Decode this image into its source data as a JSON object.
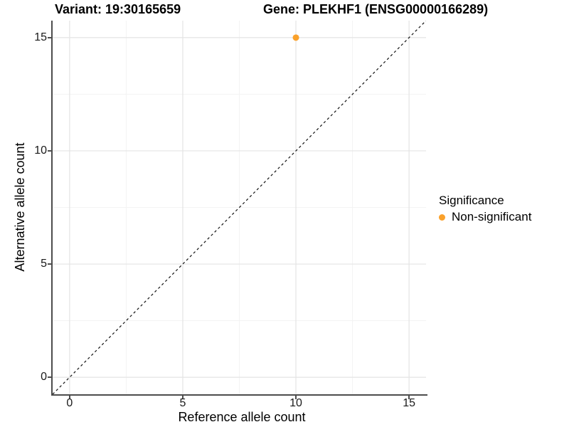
{
  "title": {
    "variant": "Variant: 19:30165659",
    "gene": "Gene: PLEKHF1 (ENSG00000166289)"
  },
  "chart_data": {
    "type": "scatter",
    "title": "Variant: 19:30165659   Gene: PLEKHF1 (ENSG00000166289)",
    "xlabel": "Reference allele count",
    "ylabel": "Alternative allele count",
    "xlim": [
      -0.75,
      15.75
    ],
    "ylim": [
      -0.75,
      15.75
    ],
    "x_major_ticks": [
      0,
      5,
      10,
      15
    ],
    "y_major_ticks": [
      0,
      5,
      10,
      15
    ],
    "x_minor_ticks": [
      2.5,
      7.5,
      12.5
    ],
    "y_minor_ticks": [
      2.5,
      7.5,
      12.5
    ],
    "grid": true,
    "legend_position": "right",
    "series": [
      {
        "name": "Non-significant",
        "color": "#FAA12B",
        "points": [
          {
            "x": 10,
            "y": 15
          }
        ]
      }
    ],
    "reference_line": {
      "style": "dashed",
      "slope": 1,
      "intercept": 0,
      "color": "#111111"
    },
    "legend": {
      "title": "Significance",
      "items": [
        {
          "label": "Non-significant",
          "color": "#FAA12B"
        }
      ]
    }
  },
  "style_colors": {
    "axis_line": "#4d4d4d",
    "major_grid": "#e4e4e4",
    "minor_grid": "#f3f3f3",
    "tick_text": "#1a1a1a"
  }
}
